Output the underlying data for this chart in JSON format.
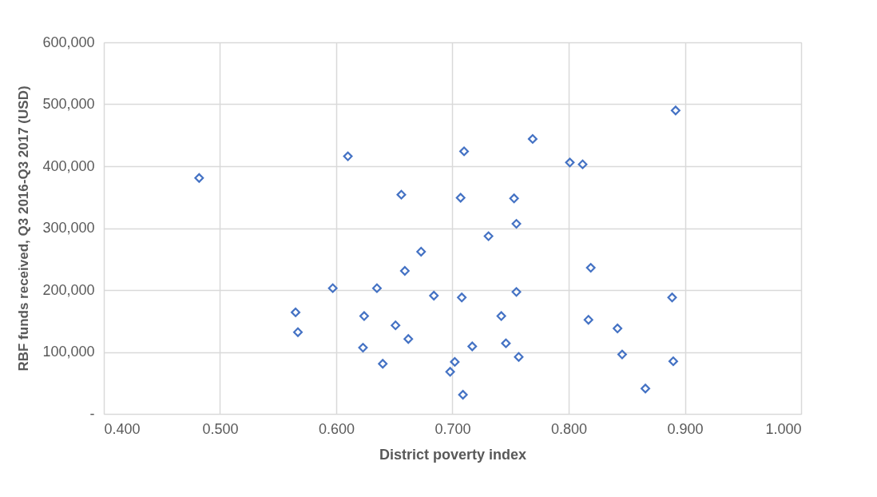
{
  "chart_data": {
    "type": "scatter",
    "xlabel": "District poverty index",
    "ylabel": "RBF funds received, Q3 2016-Q3 2017 (USD)",
    "marker": "diamond",
    "grid": true,
    "legend": false,
    "xlim": [
      0.4,
      1.0
    ],
    "ylim": [
      0,
      600000
    ],
    "xticks": [
      {
        "value": 0.4,
        "label": "0.400"
      },
      {
        "value": 0.5,
        "label": "0.500"
      },
      {
        "value": 0.6,
        "label": "0.600"
      },
      {
        "value": 0.7,
        "label": "0.700"
      },
      {
        "value": 0.8,
        "label": "0.800"
      },
      {
        "value": 0.9,
        "label": "0.900"
      },
      {
        "value": 1.0,
        "label": "1.000"
      }
    ],
    "yticks": [
      {
        "value": 0,
        "label": "-"
      },
      {
        "value": 100000,
        "label": "100,000"
      },
      {
        "value": 200000,
        "label": "200,000"
      },
      {
        "value": 300000,
        "label": "300,000"
      },
      {
        "value": 400000,
        "label": "400,000"
      },
      {
        "value": 500000,
        "label": "500,000"
      },
      {
        "value": 600000,
        "label": "600,000"
      }
    ],
    "series": [
      {
        "color": "#4472c4",
        "x": [
          0.61,
          0.71,
          0.482,
          0.656,
          0.707,
          0.731,
          0.673,
          0.659,
          0.597,
          0.635,
          0.684,
          0.708,
          0.565,
          0.624,
          0.651,
          0.567,
          0.662,
          0.623,
          0.717,
          0.64,
          0.702,
          0.698,
          0.709,
          0.892,
          0.769,
          0.801,
          0.812,
          0.753,
          0.755,
          0.819,
          0.755,
          0.889,
          0.742,
          0.817,
          0.842,
          0.746,
          0.757,
          0.846,
          0.89,
          0.866
        ],
        "values": [
          416000,
          424000,
          381000,
          354000,
          349000,
          287000,
          262000,
          231000,
          203000,
          203000,
          191000,
          188000,
          164000,
          158000,
          143000,
          132000,
          121000,
          107000,
          109000,
          81000,
          84000,
          68000,
          31000,
          490000,
          444000,
          406000,
          403000,
          348000,
          307000,
          236000,
          197000,
          188000,
          158000,
          152000,
          138000,
          114000,
          92000,
          96000,
          85000,
          41000
        ]
      }
    ]
  }
}
